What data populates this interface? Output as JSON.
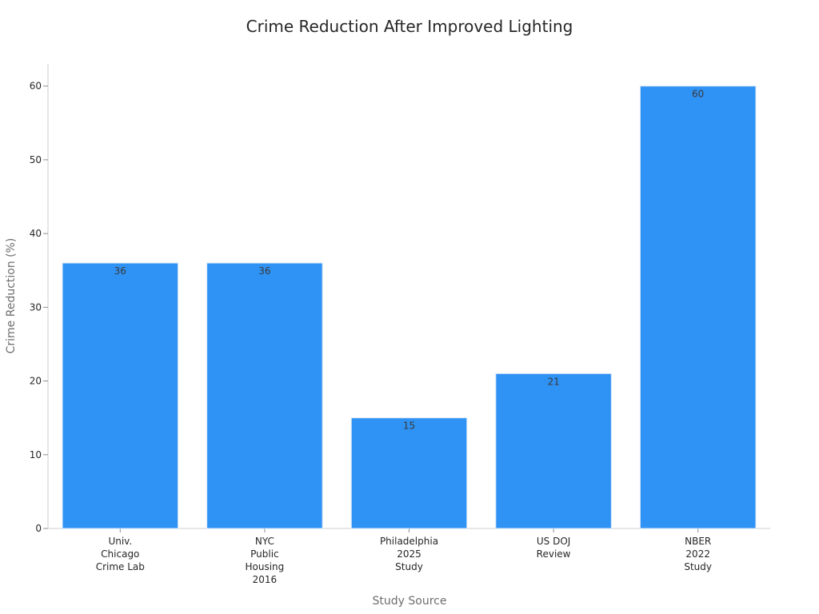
{
  "chart_data": {
    "type": "bar",
    "title": "Crime Reduction After Improved Lighting",
    "xlabel": "Study Source",
    "ylabel": "Crime Reduction (%)",
    "categories": [
      "Univ.\nChicago\nCrime Lab",
      "NYC\nPublic\nHousing\n2016",
      "Philadelphia\n2025\nStudy",
      "US DOJ\nReview",
      "NBER\n2022\nStudy"
    ],
    "values": [
      36,
      36,
      15,
      21,
      60
    ],
    "data_labels": [
      "36",
      "36",
      "15",
      "21",
      "60"
    ],
    "ylim": [
      0,
      63
    ],
    "yticks": [
      0,
      10,
      20,
      30,
      40,
      50,
      60
    ],
    "grid": false,
    "legend": "none",
    "colors": {
      "bar": "#2f92f5",
      "bar_edge": "#d6e6f7",
      "axis": "#cfcfcf",
      "text": "#262626"
    }
  }
}
